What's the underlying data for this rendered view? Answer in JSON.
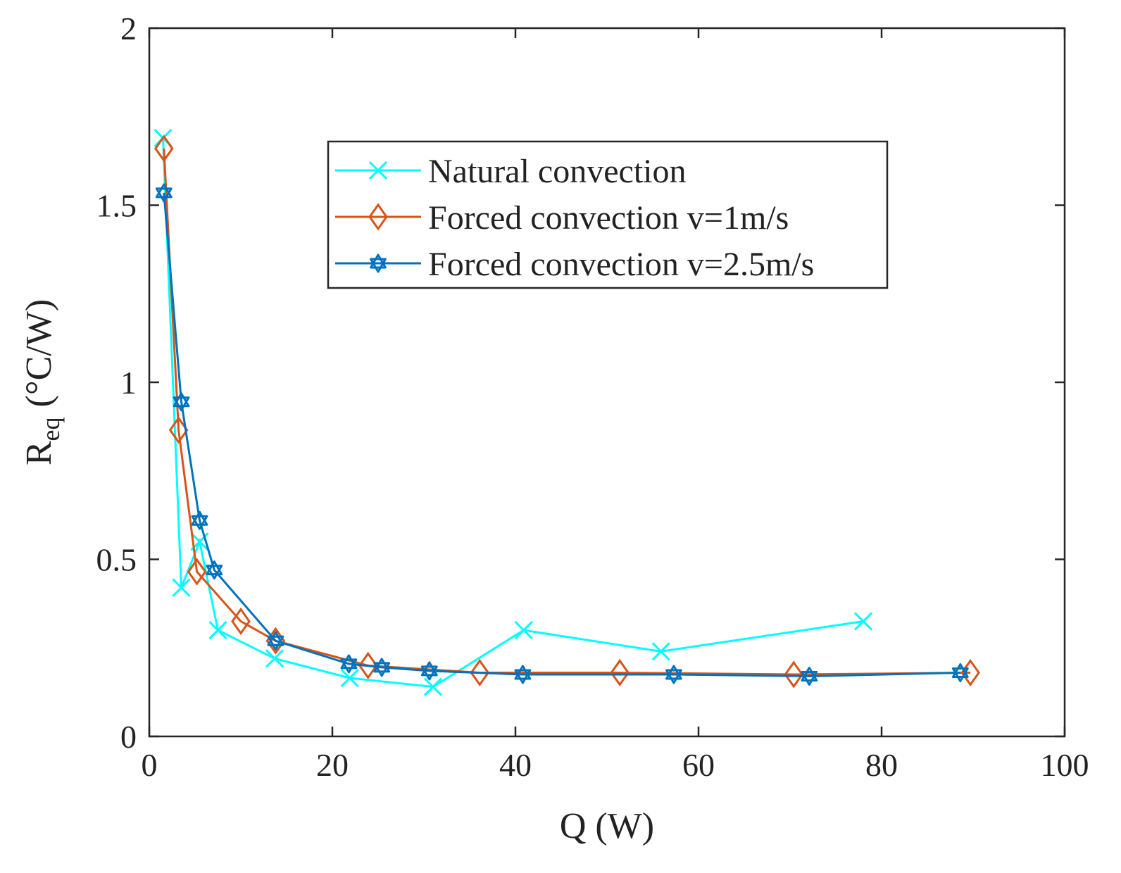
{
  "chart_data": {
    "type": "line",
    "title": "",
    "xlabel": "Q (W)",
    "ylabel": {
      "main": "R",
      "subscript": "eq",
      "unit": "(°C/W)"
    },
    "xlim": [
      0,
      100
    ],
    "ylim": [
      0,
      2
    ],
    "xticks": [
      0,
      20,
      40,
      60,
      80,
      100
    ],
    "xtick_labels": [
      "0",
      "20",
      "40",
      "60",
      "80",
      "100"
    ],
    "yticks": [
      0,
      0.5,
      1,
      1.5,
      2
    ],
    "ytick_labels": [
      "0",
      "0.5",
      "1",
      "1.5",
      "2"
    ],
    "grid": false,
    "legend_position": "top-center",
    "series": [
      {
        "name": "Natural convection",
        "color": "#00ffff",
        "marker": "cross",
        "x": [
          1.5,
          3.5,
          5.5,
          7.5,
          13.7,
          21.9,
          31.0,
          40.9,
          55.9,
          78.0
        ],
        "y": [
          1.69,
          0.42,
          0.55,
          0.3,
          0.22,
          0.165,
          0.14,
          0.3,
          0.24,
          0.325
        ]
      },
      {
        "name": "Forced convection v=1m/s",
        "color": "#d95319",
        "marker": "diamond",
        "x": [
          1.6,
          3.2,
          5.2,
          10.0,
          13.8,
          23.9,
          36.1,
          51.4,
          70.4,
          89.7
        ],
        "y": [
          1.66,
          0.865,
          0.465,
          0.325,
          0.27,
          0.2,
          0.18,
          0.18,
          0.175,
          0.18
        ]
      },
      {
        "name": "Forced convection v=2.5m/s",
        "color": "#0072bd",
        "marker": "hexagram",
        "x": [
          1.6,
          3.5,
          5.5,
          7.1,
          13.8,
          21.8,
          25.4,
          30.6,
          40.8,
          57.3,
          72.1,
          88.6
        ],
        "y": [
          1.535,
          0.945,
          0.61,
          0.47,
          0.27,
          0.205,
          0.195,
          0.185,
          0.175,
          0.175,
          0.17,
          0.18
        ]
      }
    ]
  }
}
